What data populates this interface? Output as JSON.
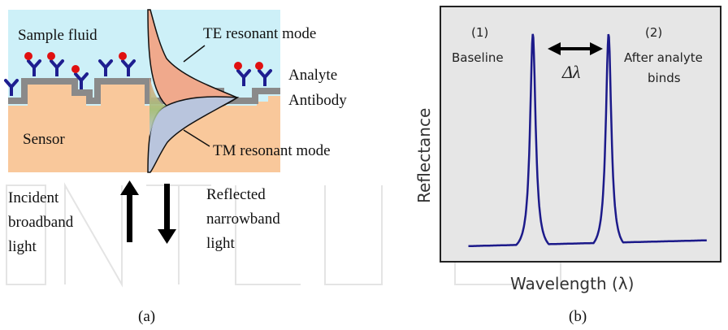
{
  "panel_a": {
    "label_sample_fluid": "Sample fluid",
    "label_sensor": "Sensor",
    "label_te": "TE resonant mode",
    "label_tm": "TM resonant mode",
    "label_analyte": "Analyte",
    "label_antibody": "Antibody",
    "incident": [
      "Incident",
      "broadband",
      "light"
    ],
    "reflected": [
      "Reflected",
      "narrowband",
      "light"
    ],
    "caption": "(a)"
  },
  "panel_b": {
    "peak1_number": "(1)",
    "peak1_label": "Baseline",
    "peak2_number": "(2)",
    "peak2_label": [
      "After analyte",
      "binds"
    ],
    "shift_label": "Δλ",
    "caption": "(b)"
  },
  "chart_data": {
    "type": "line",
    "xlabel": "Wavelength (λ)",
    "ylabel": "Reflectance",
    "series": [
      {
        "name": "(1) Baseline",
        "peak_x": 0.33,
        "peak_y": 0.97
      },
      {
        "name": "(2) After analyte binds",
        "peak_x": 0.6,
        "peak_y": 0.97
      }
    ],
    "baseline_level": 0.03,
    "grid": false,
    "colors": {
      "curve": "#1c1a8a",
      "plot_bg": "#e6e6e6",
      "frame": "#222222"
    }
  },
  "colors": {
    "fluid": "#cdf0f8",
    "sensor": "#f9c89b",
    "grating": "#8a8a8a",
    "te_fill": "#f0a98c",
    "tm_fill": "#b9c5dd",
    "antibody": "#1e1e90",
    "analyte": "#e01010"
  }
}
